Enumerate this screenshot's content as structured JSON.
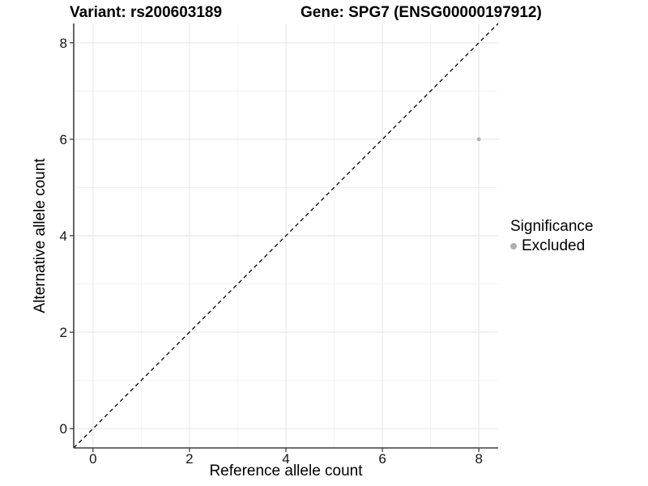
{
  "header": {
    "variant_title": "Variant: rs200603189",
    "gene_title": "Gene: SPG7 (ENSG00000197912)"
  },
  "axes": {
    "x_label": "Reference allele count",
    "y_label": "Alternative allele count"
  },
  "legend": {
    "title": "Significance",
    "items": [
      {
        "label": "Excluded",
        "color": "#b0b0b0"
      }
    ]
  },
  "colors": {
    "axis_line": "#3f3f3f",
    "tick_mark": "#3f3f3f",
    "tick_label": "#141414",
    "grid_major": "#e8e8e8",
    "grid_minor": "#f3f3f3",
    "point": "#b2b2b2",
    "reference_line": "#000000",
    "background": "#ffffff"
  },
  "chart_data": {
    "type": "scatter",
    "title": "Variant: rs200603189   Gene: SPG7 (ENSG00000197912)",
    "xlabel": "Reference allele count",
    "ylabel": "Alternative allele count",
    "xlim": [
      -0.4,
      8.4
    ],
    "ylim": [
      -0.4,
      8.4
    ],
    "x_ticks": [
      0,
      2,
      4,
      6,
      8
    ],
    "y_ticks": [
      0,
      2,
      4,
      6,
      8
    ],
    "x_minor_ticks": [
      1,
      3,
      5,
      7
    ],
    "y_minor_ticks": [
      1,
      3,
      5,
      7
    ],
    "grid": true,
    "legend_position": "right",
    "series": [
      {
        "name": "Excluded",
        "color": "#b2b2b2",
        "points": [
          {
            "x": 8,
            "y": 6
          }
        ]
      }
    ],
    "reference_line": {
      "type": "identity",
      "slope": 1,
      "intercept": 0,
      "style": "dashed",
      "color": "#000000"
    }
  }
}
